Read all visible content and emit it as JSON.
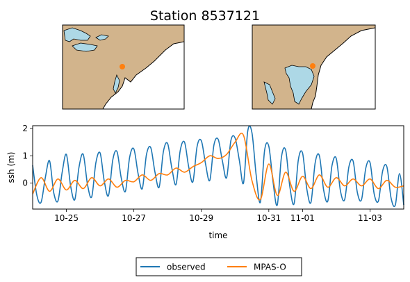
{
  "title": "Station 8537121",
  "colors": {
    "land": "#d2b48c",
    "water": "#add8e6",
    "observed": "#1f77b4",
    "model": "#ff7f0e",
    "station_marker": "#ff7f0e"
  },
  "maps": [
    {
      "name": "overview-map",
      "description_icon": "map-region-mid-atlantic"
    },
    {
      "name": "zoom-map",
      "description_icon": "map-region-delaware-bay"
    }
  ],
  "legend": {
    "observed": "observed",
    "model": "MPAS-O"
  },
  "chart_data": {
    "type": "line",
    "xlabel": "time",
    "ylabel": "ssh (m)",
    "xlim": [
      "2023-10-24",
      "2023-11-04"
    ],
    "ylim": [
      -0.95,
      2.1
    ],
    "yticks": [
      0,
      1,
      2
    ],
    "yticklabels": [
      "0",
      "1",
      "2"
    ],
    "xticks": [
      "2023-10-25",
      "2023-10-27",
      "2023-10-29",
      "2023-10-31",
      "2023-11-01",
      "2023-11-03"
    ],
    "xticklabels": [
      "10-25",
      "10-27",
      "10-29",
      "10-31",
      "11-01",
      "11-03"
    ],
    "grid": false,
    "legend_position": "below",
    "series": [
      {
        "name": "observed",
        "color": "#1f77b4",
        "x": [
          "2023-10-24 00:00",
          "2023-10-24 03:00",
          "2023-10-24 06:00",
          "2023-10-24 09:00",
          "2023-10-24 12:00",
          "2023-10-24 15:00",
          "2023-10-24 18:00",
          "2023-10-24 21:00",
          "2023-10-25 00:00",
          "2023-10-25 03:00",
          "2023-10-25 06:00",
          "2023-10-25 09:00",
          "2023-10-25 12:00",
          "2023-10-25 15:00",
          "2023-10-25 18:00",
          "2023-10-25 21:00",
          "2023-10-26 00:00",
          "2023-10-26 03:00",
          "2023-10-26 06:00",
          "2023-10-26 09:00",
          "2023-10-26 12:00",
          "2023-10-26 15:00",
          "2023-10-26 18:00",
          "2023-10-26 21:00",
          "2023-10-27 00:00",
          "2023-10-27 03:00",
          "2023-10-27 06:00",
          "2023-10-27 09:00",
          "2023-10-27 12:00",
          "2023-10-27 15:00",
          "2023-10-27 18:00",
          "2023-10-27 21:00",
          "2023-10-28 00:00",
          "2023-10-28 03:00",
          "2023-10-28 06:00",
          "2023-10-28 09:00",
          "2023-10-28 12:00",
          "2023-10-28 15:00",
          "2023-10-28 18:00",
          "2023-10-28 21:00",
          "2023-10-29 00:00",
          "2023-10-29 03:00",
          "2023-10-29 06:00",
          "2023-10-29 09:00",
          "2023-10-29 12:00",
          "2023-10-29 15:00",
          "2023-10-29 18:00",
          "2023-10-29 21:00",
          "2023-10-30 00:00",
          "2023-10-30 03:00",
          "2023-10-30 06:00",
          "2023-10-30 09:00",
          "2023-10-30 12:00",
          "2023-10-30 15:00",
          "2023-10-30 18:00",
          "2023-10-30 21:00",
          "2023-10-31 00:00",
          "2023-10-31 03:00",
          "2023-10-31 06:00",
          "2023-10-31 09:00",
          "2023-10-31 12:00",
          "2023-10-31 15:00",
          "2023-10-31 18:00",
          "2023-10-31 21:00",
          "2023-11-01 00:00",
          "2023-11-01 03:00",
          "2023-11-01 06:00",
          "2023-11-01 09:00",
          "2023-11-01 12:00",
          "2023-11-01 15:00",
          "2023-11-01 18:00",
          "2023-11-01 21:00",
          "2023-11-02 00:00",
          "2023-11-02 03:00",
          "2023-11-02 06:00",
          "2023-11-02 09:00",
          "2023-11-02 12:00",
          "2023-11-02 15:00",
          "2023-11-02 18:00",
          "2023-11-02 21:00",
          "2023-11-03 00:00",
          "2023-11-03 03:00",
          "2023-11-03 06:00",
          "2023-11-03 09:00",
          "2023-11-03 12:00",
          "2023-11-03 15:00",
          "2023-11-03 18:00",
          "2023-11-03 21:00",
          "2023-11-04 00:00"
        ],
        "values": [
          0.65,
          -0.45,
          -0.7,
          0.2,
          0.82,
          -0.35,
          -0.65,
          0.4,
          1.05,
          -0.1,
          -0.6,
          0.6,
          1.05,
          -0.05,
          -0.5,
          0.75,
          1.1,
          0.05,
          -0.45,
          0.85,
          1.15,
          0.2,
          -0.3,
          0.95,
          1.25,
          0.35,
          -0.2,
          1.05,
          1.3,
          0.4,
          -0.15,
          1.15,
          1.45,
          0.55,
          -0.05,
          1.2,
          1.5,
          0.6,
          0.05,
          1.35,
          1.55,
          0.7,
          0.1,
          1.4,
          1.6,
          0.8,
          0.2,
          1.55,
          1.65,
          0.85,
          0.0,
          1.9,
          1.85,
          0.3,
          -0.7,
          1.2,
          1.35,
          0.05,
          -0.8,
          0.95,
          1.2,
          -0.15,
          -0.75,
          0.85,
          1.1,
          -0.2,
          -0.7,
          0.75,
          1.0,
          -0.25,
          -0.65,
          0.65,
          0.9,
          -0.3,
          -0.6,
          0.6,
          0.8,
          -0.35,
          -0.6,
          0.55,
          0.75,
          -0.4,
          -0.65,
          0.45,
          0.6,
          -0.55,
          -0.8,
          0.35,
          -0.8
        ]
      },
      {
        "name": "MPAS-O",
        "color": "#ff7f0e",
        "x": [
          "2023-10-24 00:00",
          "2023-10-24 06:00",
          "2023-10-24 12:00",
          "2023-10-24 18:00",
          "2023-10-25 00:00",
          "2023-10-25 06:00",
          "2023-10-25 12:00",
          "2023-10-25 18:00",
          "2023-10-26 00:00",
          "2023-10-26 06:00",
          "2023-10-26 12:00",
          "2023-10-26 18:00",
          "2023-10-27 00:00",
          "2023-10-27 06:00",
          "2023-10-27 12:00",
          "2023-10-27 18:00",
          "2023-10-28 00:00",
          "2023-10-28 06:00",
          "2023-10-28 12:00",
          "2023-10-28 18:00",
          "2023-10-29 00:00",
          "2023-10-29 06:00",
          "2023-10-29 12:00",
          "2023-10-29 18:00",
          "2023-10-30 00:00",
          "2023-10-30 06:00",
          "2023-10-30 12:00",
          "2023-10-30 18:00",
          "2023-10-31 00:00",
          "2023-10-31 06:00",
          "2023-10-31 12:00",
          "2023-10-31 18:00",
          "2023-11-01 00:00",
          "2023-11-01 06:00",
          "2023-11-01 12:00",
          "2023-11-01 18:00",
          "2023-11-02 00:00",
          "2023-11-02 06:00",
          "2023-11-02 12:00",
          "2023-11-02 18:00",
          "2023-11-03 00:00",
          "2023-11-03 06:00",
          "2023-11-03 12:00",
          "2023-11-03 18:00",
          "2023-11-04 00:00"
        ],
        "values": [
          -0.4,
          0.2,
          -0.3,
          0.15,
          -0.25,
          0.1,
          -0.2,
          0.2,
          -0.1,
          0.15,
          -0.15,
          0.1,
          0.05,
          0.3,
          0.1,
          0.35,
          0.3,
          0.55,
          0.4,
          0.6,
          0.75,
          1.0,
          0.9,
          1.05,
          1.5,
          1.75,
          0.1,
          -0.6,
          0.7,
          -0.45,
          0.4,
          -0.3,
          0.25,
          -0.2,
          0.3,
          -0.15,
          0.2,
          -0.1,
          0.15,
          -0.1,
          0.15,
          -0.2,
          0.1,
          -0.15,
          -0.1
        ]
      }
    ]
  }
}
